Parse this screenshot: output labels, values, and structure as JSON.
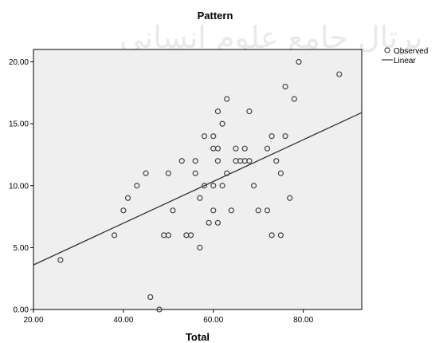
{
  "chart_data": {
    "type": "scatter",
    "title": "Pattern",
    "xlabel": "Total",
    "ylabel": "",
    "xlim": [
      20,
      93
    ],
    "ylim": [
      0,
      21
    ],
    "x_ticks": [
      "20.00",
      "40.00",
      "60.00",
      "80.00"
    ],
    "y_ticks": [
      "0.00",
      "5.00",
      "10.00",
      "15.00",
      "20.00"
    ],
    "legend": {
      "position": "top-right",
      "entries": [
        "Observed",
        "Linear"
      ]
    },
    "colors": {
      "plot_background": "#efefef",
      "marker": "#444444",
      "line": "#333333"
    },
    "series": [
      {
        "name": "Observed",
        "kind": "scatter",
        "points": [
          [
            26,
            4
          ],
          [
            38,
            6
          ],
          [
            40,
            8
          ],
          [
            41,
            9
          ],
          [
            43,
            10
          ],
          [
            45,
            11
          ],
          [
            46,
            1
          ],
          [
            48,
            0
          ],
          [
            49,
            6
          ],
          [
            50,
            6
          ],
          [
            50,
            11
          ],
          [
            51,
            8
          ],
          [
            53,
            12
          ],
          [
            54,
            6
          ],
          [
            55,
            6
          ],
          [
            56,
            11
          ],
          [
            56,
            12
          ],
          [
            57,
            5
          ],
          [
            57,
            9
          ],
          [
            58,
            10
          ],
          [
            58,
            14
          ],
          [
            59,
            7
          ],
          [
            60,
            8
          ],
          [
            60,
            10
          ],
          [
            60,
            13
          ],
          [
            60,
            14
          ],
          [
            61,
            7
          ],
          [
            61,
            12
          ],
          [
            61,
            13
          ],
          [
            61,
            16
          ],
          [
            62,
            10
          ],
          [
            62,
            15
          ],
          [
            63,
            11
          ],
          [
            63,
            17
          ],
          [
            64,
            8
          ],
          [
            65,
            13
          ],
          [
            65,
            12
          ],
          [
            66,
            12
          ],
          [
            67,
            12
          ],
          [
            67,
            13
          ],
          [
            68,
            12
          ],
          [
            68,
            16
          ],
          [
            69,
            10
          ],
          [
            70,
            8
          ],
          [
            72,
            8
          ],
          [
            72,
            13
          ],
          [
            73,
            6
          ],
          [
            73,
            14
          ],
          [
            74,
            12
          ],
          [
            75,
            6
          ],
          [
            75,
            11
          ],
          [
            76,
            14
          ],
          [
            76,
            18
          ],
          [
            77,
            9
          ],
          [
            78,
            17
          ],
          [
            79,
            20
          ],
          [
            88,
            19
          ]
        ]
      },
      {
        "name": "Linear",
        "kind": "line",
        "points": [
          [
            20,
            3.6
          ],
          [
            93,
            15.9
          ]
        ]
      }
    ]
  }
}
